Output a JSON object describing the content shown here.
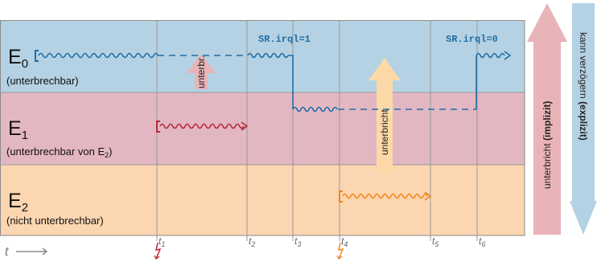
{
  "levels": [
    {
      "symbol": "E",
      "sub": "0",
      "desc": "(unterbrechbar)",
      "color": "#b4d2e3"
    },
    {
      "symbol": "E",
      "sub": "1",
      "desc_prefix": "(unterbrechbar  von  E",
      "desc_sub": "2",
      "desc_suffix": ")",
      "color": "#e3b7c2"
    },
    {
      "symbol": "E",
      "sub": "2",
      "desc": "(nicht  unterbrechbar)",
      "color": "#fcd6b0"
    }
  ],
  "time_label": "t",
  "ticks": [
    {
      "label": "t",
      "sub": "1"
    },
    {
      "label": "t",
      "sub": "2"
    },
    {
      "label": "t",
      "sub": "3"
    },
    {
      "label": "t",
      "sub": "4"
    },
    {
      "label": "t",
      "sub": "5"
    },
    {
      "label": "t",
      "sub": "6"
    }
  ],
  "annotations": {
    "irql_set": "SR.irql=1",
    "irql_clear": "SR.irql=0",
    "arrow_short": "unterbr.",
    "arrow_long": "unterbricht"
  },
  "side_arrows": {
    "left_prefix": "unterbricht ",
    "left_bold": "(implizit)",
    "right_prefix": "kann verzögern ",
    "right_bold": "(explizit)"
  },
  "colors": {
    "e0_line": "#1f6ea8",
    "e1_line": "#b5283c",
    "e2_line": "#f0841e",
    "grid": "#9a9a9a",
    "arrow_pink": "#e8b4b8",
    "arrow_peach": "#fdd9a8",
    "arrow_blue": "#b4d2e3"
  }
}
